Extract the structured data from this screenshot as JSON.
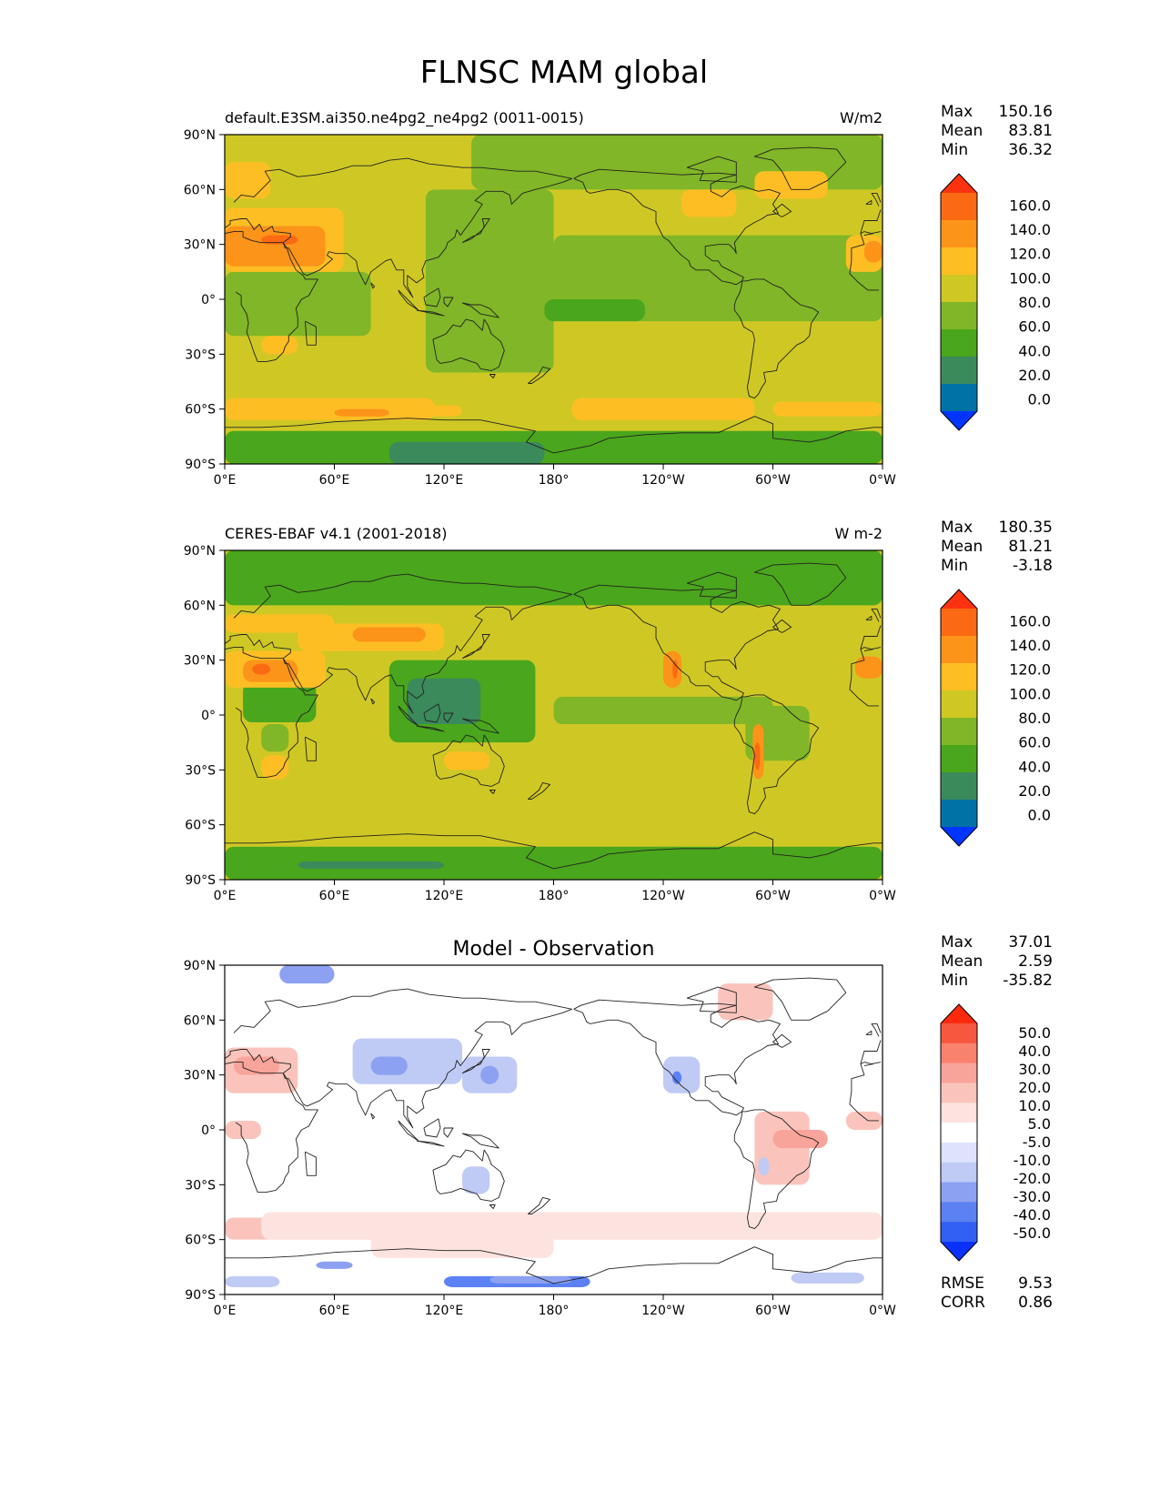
{
  "title": "FLNSC MAM global",
  "colors": {
    "main": [
      "#0035ff",
      "#0072a6",
      "#3b8a5c",
      "#4aa61c",
      "#80b627",
      "#cfc824",
      "#fdbe24",
      "#fc9419",
      "#fb6a13",
      "#ff3210"
    ],
    "diff": [
      "#0a31fc",
      "#3360f4",
      "#5b81f2",
      "#8ca1f1",
      "#bfcaf5",
      "#dde3fa",
      "#ffffff",
      "#fde3df",
      "#fac4bd",
      "#f9a49a",
      "#f9826f",
      "#f7573f",
      "#ff2a0d"
    ],
    "coast": "#222222"
  },
  "chart_data": [
    {
      "type": "heatmap",
      "title": "default.E3SM.ai350.ne4pg2_ne4pg2 (0011-0015)",
      "units": "W/m2",
      "xlabel": "",
      "ylabel": "",
      "xlim": [
        0,
        360
      ],
      "ylim": [
        -90,
        90
      ],
      "xticks": [
        "0°E",
        "60°E",
        "120°E",
        "180°",
        "120°W",
        "60°W",
        "0°W"
      ],
      "yticks": [
        "90°N",
        "60°N",
        "30°N",
        "0°",
        "30°S",
        "60°S",
        "90°S"
      ],
      "stats": [
        {
          "label": "Max",
          "value": "150.16"
        },
        {
          "label": "Mean",
          "value": "83.81"
        },
        {
          "label": "Min",
          "value": "36.32"
        }
      ],
      "levels": [
        "160.0",
        "140.0",
        "120.0",
        "100.0",
        "80.0",
        "60.0",
        "40.0",
        "20.0",
        "0.0"
      ],
      "colorbar_extend": "both"
    },
    {
      "type": "heatmap",
      "title": "CERES-EBAF v4.1 (2001-2018)",
      "units": "W m-2",
      "xlabel": "",
      "ylabel": "",
      "xlim": [
        0,
        360
      ],
      "ylim": [
        -90,
        90
      ],
      "xticks": [
        "0°E",
        "60°E",
        "120°E",
        "180°",
        "120°W",
        "60°W",
        "0°W"
      ],
      "yticks": [
        "90°N",
        "60°N",
        "30°N",
        "0°",
        "30°S",
        "60°S",
        "90°S"
      ],
      "stats": [
        {
          "label": "Max",
          "value": "180.35"
        },
        {
          "label": "Mean",
          "value": "81.21"
        },
        {
          "label": "Min",
          "value": "-3.18"
        }
      ],
      "levels": [
        "160.0",
        "140.0",
        "120.0",
        "100.0",
        "80.0",
        "60.0",
        "40.0",
        "20.0",
        "0.0"
      ],
      "colorbar_extend": "both"
    },
    {
      "type": "heatmap",
      "title": "Model - Observation",
      "units": "",
      "xlabel": "",
      "ylabel": "",
      "xlim": [
        0,
        360
      ],
      "ylim": [
        -90,
        90
      ],
      "xticks": [
        "0°E",
        "60°E",
        "120°E",
        "180°",
        "120°W",
        "60°W",
        "0°W"
      ],
      "yticks": [
        "90°N",
        "60°N",
        "30°N",
        "0°",
        "30°S",
        "60°S",
        "90°S"
      ],
      "stats": [
        {
          "label": "Max",
          "value": "37.01"
        },
        {
          "label": "Mean",
          "value": "2.59"
        },
        {
          "label": "Min",
          "value": "-35.82"
        }
      ],
      "levels": [
        "50.0",
        "40.0",
        "30.0",
        "20.0",
        "10.0",
        "5.0",
        "-5.0",
        "-10.0",
        "-20.0",
        "-30.0",
        "-40.0",
        "-50.0"
      ],
      "colorbar_extend": "both",
      "metrics": [
        {
          "label": "RMSE",
          "value": "9.53"
        },
        {
          "label": "CORR",
          "value": "0.86"
        }
      ]
    }
  ]
}
